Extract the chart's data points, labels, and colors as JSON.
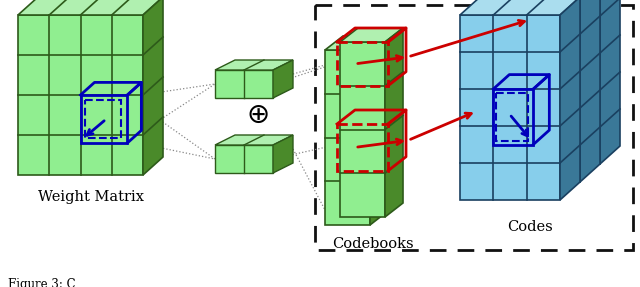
{
  "weight_matrix_label": "Weight Matrix",
  "codebooks_label": "Codebooks",
  "codes_label": "Codes",
  "caption": "Figure 3: C",
  "light_green": "#90EE90",
  "med_green": "#5a9a3a",
  "dark_green": "#2d5a1a",
  "top_green": "#b0f0b0",
  "side_green": "#4a8a2a",
  "light_blue": "#87CEEB",
  "med_blue": "#4a90b8",
  "dark_blue": "#1a4060",
  "top_blue": "#aaddee",
  "side_blue": "#3a7898",
  "red": "#cc0000",
  "blue_highlight": "#0000bb",
  "background": "#ffffff",
  "dashed_box_color": "#111111",
  "gray_dot": "#888888"
}
